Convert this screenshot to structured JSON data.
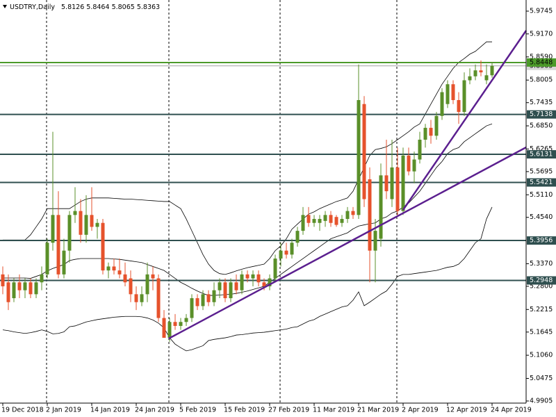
{
  "chart_data": {
    "type": "candlestick",
    "title": "USDTRY,Daily",
    "categories": [
      "19 Dec 2018",
      null,
      null,
      null,
      null,
      null,
      null,
      null,
      "2 Jan 2019",
      null,
      null,
      null,
      null,
      null,
      null,
      null,
      "14 Jan 2019",
      null,
      null,
      null,
      null,
      null,
      null,
      null,
      "24 Jan 2019",
      null,
      null,
      null,
      null,
      null,
      null,
      null,
      "5 Feb 2019",
      null,
      null,
      null,
      null,
      null,
      null,
      null,
      "15 Feb 2019",
      null,
      null,
      null,
      null,
      null,
      null,
      null,
      "27 Feb 2019",
      null,
      null,
      null,
      null,
      null,
      null,
      null,
      "11 Mar 2019",
      null,
      null,
      null,
      null,
      null,
      null,
      null,
      "21 Mar 2019",
      null,
      null,
      null,
      null,
      null,
      null,
      null,
      "2 Apr 2019",
      null,
      null,
      null,
      null,
      null,
      null,
      null,
      "12 Apr 2019",
      null,
      null,
      null,
      null,
      null,
      null,
      null,
      "24 Apr 2019"
    ],
    "open": [
      5.31,
      5.29,
      5.25,
      5.29,
      5.27,
      5.29,
      5.26,
      5.29,
      5.31,
      5.39,
      5.46,
      5.31,
      5.37,
      5.46,
      5.47,
      5.41,
      5.46,
      5.43,
      5.44,
      5.32,
      5.33,
      5.32,
      5.31,
      5.3,
      5.26,
      5.24,
      5.26,
      5.31,
      5.3,
      5.2,
      5.15,
      5.19,
      5.18,
      5.19,
      5.2,
      5.25,
      5.23,
      5.26,
      5.24,
      5.27,
      5.29,
      5.25,
      5.29,
      5.27,
      5.31,
      5.3,
      5.31,
      5.29,
      5.28,
      5.3,
      5.35,
      5.37,
      5.36,
      5.39,
      5.42,
      5.46,
      5.44,
      5.44,
      5.445,
      5.46,
      5.455,
      5.44,
      5.45,
      5.47,
      5.46,
      5.74,
      5.55,
      5.37,
      5.4,
      5.56,
      5.5,
      5.58,
      5.47,
      5.61,
      5.57,
      5.6,
      5.65,
      5.68,
      5.66,
      5.71,
      5.74,
      5.79,
      5.75,
      5.72,
      5.8,
      5.81,
      5.825,
      5.8,
      5.8126
    ],
    "high": [
      5.33,
      5.31,
      5.3,
      5.31,
      5.3,
      5.3,
      5.3,
      5.33,
      5.4,
      5.67,
      5.52,
      5.4,
      5.47,
      5.53,
      5.5,
      5.51,
      5.53,
      5.45,
      5.45,
      5.34,
      5.35,
      5.35,
      5.34,
      5.32,
      5.28,
      5.28,
      5.34,
      5.33,
      5.31,
      5.22,
      5.2,
      5.21,
      5.2,
      5.21,
      5.26,
      5.26,
      5.27,
      5.27,
      5.29,
      5.3,
      5.3,
      5.3,
      5.31,
      5.32,
      5.32,
      5.32,
      5.32,
      5.3,
      5.31,
      5.36,
      5.39,
      5.39,
      5.4,
      5.43,
      5.48,
      5.48,
      5.46,
      5.46,
      5.47,
      5.47,
      5.46,
      5.46,
      5.48,
      5.48,
      5.84,
      5.76,
      5.58,
      5.45,
      5.59,
      5.65,
      5.65,
      5.63,
      5.63,
      5.63,
      5.62,
      5.67,
      5.69,
      5.7,
      5.72,
      5.78,
      5.8,
      5.8,
      5.77,
      5.82,
      5.83,
      5.84,
      5.85,
      5.84,
      5.8464
    ],
    "low": [
      5.26,
      5.22,
      5.24,
      5.25,
      5.25,
      5.25,
      5.25,
      5.27,
      5.3,
      5.37,
      5.3,
      5.3,
      5.34,
      5.44,
      5.39,
      5.39,
      5.42,
      5.4,
      5.31,
      5.3,
      5.31,
      5.3,
      5.28,
      5.24,
      5.22,
      5.23,
      5.24,
      5.27,
      5.19,
      5.15,
      5.14,
      5.17,
      5.17,
      5.18,
      5.19,
      5.22,
      5.22,
      5.23,
      5.23,
      5.25,
      5.24,
      5.24,
      5.26,
      5.26,
      5.29,
      5.28,
      5.28,
      5.27,
      5.27,
      5.29,
      5.33,
      5.35,
      5.35,
      5.38,
      5.41,
      5.43,
      5.43,
      5.42,
      5.43,
      5.43,
      5.43,
      5.43,
      5.44,
      5.45,
      5.45,
      5.48,
      5.29,
      5.29,
      5.38,
      5.5,
      5.48,
      5.46,
      5.46,
      5.56,
      5.54,
      5.59,
      5.63,
      5.64,
      5.65,
      5.7,
      5.73,
      5.74,
      5.69,
      5.71,
      5.79,
      5.8,
      5.81,
      5.79,
      5.8065
    ],
    "close": [
      5.28,
      5.24,
      5.29,
      5.27,
      5.29,
      5.26,
      5.29,
      5.31,
      5.39,
      5.46,
      5.31,
      5.37,
      5.46,
      5.47,
      5.41,
      5.46,
      5.43,
      5.44,
      5.32,
      5.33,
      5.32,
      5.31,
      5.29,
      5.26,
      5.24,
      5.26,
      5.31,
      5.3,
      5.2,
      5.15,
      5.19,
      5.18,
      5.19,
      5.2,
      5.25,
      5.23,
      5.26,
      5.24,
      5.27,
      5.29,
      5.25,
      5.29,
      5.27,
      5.31,
      5.3,
      5.31,
      5.29,
      5.28,
      5.3,
      5.35,
      5.37,
      5.36,
      5.39,
      5.42,
      5.46,
      5.44,
      5.45,
      5.45,
      5.46,
      5.44,
      5.435,
      5.45,
      5.47,
      5.46,
      5.75,
      5.5,
      5.37,
      5.42,
      5.56,
      5.52,
      5.58,
      5.47,
      5.61,
      5.57,
      5.6,
      5.65,
      5.68,
      5.66,
      5.71,
      5.77,
      5.79,
      5.75,
      5.72,
      5.8,
      5.81,
      5.825,
      5.82,
      5.8126,
      5.8363
    ],
    "up_color": "#5a8f29",
    "down_color": "#e6522c",
    "bands": {
      "color": "#000000",
      "upper": [
        5.397,
        5.397,
        5.397,
        5.397,
        5.397,
        5.41,
        5.43,
        5.45,
        5.476,
        5.476,
        5.476,
        5.476,
        5.476,
        5.485,
        5.494,
        5.5,
        5.503,
        5.503,
        5.503,
        5.503,
        5.502,
        5.501,
        5.5,
        5.5,
        5.499,
        5.498,
        5.497,
        5.496,
        5.495,
        5.494,
        5.494,
        5.485,
        5.476,
        5.45,
        5.42,
        5.39,
        5.36,
        5.336,
        5.32,
        5.312,
        5.31,
        5.314,
        5.319,
        5.323,
        5.327,
        5.33,
        5.333,
        5.336,
        5.35,
        5.37,
        5.382,
        5.4,
        5.424,
        5.437,
        5.45,
        5.462,
        5.468,
        5.476,
        5.482,
        5.488,
        5.494,
        5.498,
        5.503,
        5.52,
        5.55,
        5.58,
        5.61,
        5.625,
        5.628,
        5.632,
        5.64,
        5.65,
        5.66,
        5.67,
        5.682,
        5.69,
        5.715,
        5.74,
        5.765,
        5.79,
        5.81,
        5.83,
        5.845,
        5.855,
        5.866,
        5.873,
        5.885,
        5.897,
        5.897
      ],
      "middle": [
        5.301,
        5.301,
        5.301,
        5.301,
        5.301,
        5.3,
        5.305,
        5.31,
        5.319,
        5.325,
        5.33,
        5.335,
        5.345,
        5.348,
        5.35,
        5.35,
        5.35,
        5.35,
        5.35,
        5.35,
        5.349,
        5.348,
        5.346,
        5.344,
        5.342,
        5.34,
        5.335,
        5.33,
        5.325,
        5.32,
        5.31,
        5.3,
        5.29,
        5.283,
        5.275,
        5.268,
        5.262,
        5.257,
        5.257,
        5.258,
        5.259,
        5.26,
        5.262,
        5.265,
        5.268,
        5.272,
        5.276,
        5.28,
        5.29,
        5.3,
        5.31,
        5.32,
        5.33,
        5.34,
        5.35,
        5.36,
        5.37,
        5.38,
        5.39,
        5.4,
        5.405,
        5.41,
        5.415,
        5.425,
        5.432,
        5.435,
        5.438,
        5.44,
        5.45,
        5.455,
        5.465,
        5.47,
        5.48,
        5.49,
        5.505,
        5.52,
        5.54,
        5.56,
        5.58,
        5.595,
        5.615,
        5.625,
        5.63,
        5.645,
        5.655,
        5.665,
        5.675,
        5.685,
        5.69
      ],
      "lower": [
        5.17,
        5.168,
        5.165,
        5.163,
        5.161,
        5.163,
        5.166,
        5.17,
        5.166,
        5.16,
        5.161,
        5.165,
        5.178,
        5.18,
        5.185,
        5.19,
        5.193,
        5.196,
        5.198,
        5.2,
        5.202,
        5.203,
        5.204,
        5.204,
        5.204,
        5.203,
        5.2,
        5.195,
        5.187,
        5.175,
        5.15,
        5.134,
        5.125,
        5.117,
        5.12,
        5.125,
        5.13,
        5.143,
        5.146,
        5.148,
        5.15,
        5.153,
        5.157,
        5.158,
        5.16,
        5.162,
        5.163,
        5.164,
        5.166,
        5.168,
        5.17,
        5.172,
        5.176,
        5.178,
        5.185,
        5.192,
        5.196,
        5.204,
        5.21,
        5.216,
        5.222,
        5.228,
        5.231,
        5.245,
        5.266,
        5.231,
        5.24,
        5.25,
        5.26,
        5.268,
        5.285,
        5.305,
        5.31,
        5.31,
        5.312,
        5.314,
        5.316,
        5.318,
        5.32,
        5.324,
        5.328,
        5.33,
        5.336,
        5.35,
        5.37,
        5.39,
        5.4,
        5.45,
        5.48
      ]
    },
    "levels": [
      {
        "value": 5.8448,
        "color": "#4c9a2a",
        "text_color": "#000000"
      },
      {
        "value": 5.7138,
        "color": "#2f4f4f",
        "text_color": "#ffffff"
      },
      {
        "value": 5.6131,
        "color": "#2f4f4f",
        "text_color": "#ffffff"
      },
      {
        "value": 5.5421,
        "color": "#2f4f4f",
        "text_color": "#ffffff"
      },
      {
        "value": 5.3956,
        "color": "#2f4f4f",
        "text_color": "#ffffff"
      },
      {
        "value": 5.2948,
        "color": "#2f4f4f",
        "text_color": "#ffffff"
      }
    ],
    "ylim": [
      4.9852,
      6.0026
    ],
    "yticks": [
      5.9745,
      {
        "value": 5.917,
        "label": "5.9170"
      },
      {
        "value": 5.859,
        "label": "5.8590"
      },
      5.8005,
      5.7435,
      {
        "value": 5.685,
        "label": "5.6850"
      },
      5.6265,
      5.5695,
      {
        "value": 5.511,
        "label": "5.5110"
      },
      {
        "value": 5.454,
        "label": "5.4540"
      },
      {
        "value": 5.337,
        "label": "5.3370"
      },
      {
        "value": 5.28,
        "label": "5.2800"
      },
      5.2215,
      5.1645,
      {
        "value": 5.106,
        "label": "5.1060"
      },
      5.0475,
      4.9905
    ]
  }
}
